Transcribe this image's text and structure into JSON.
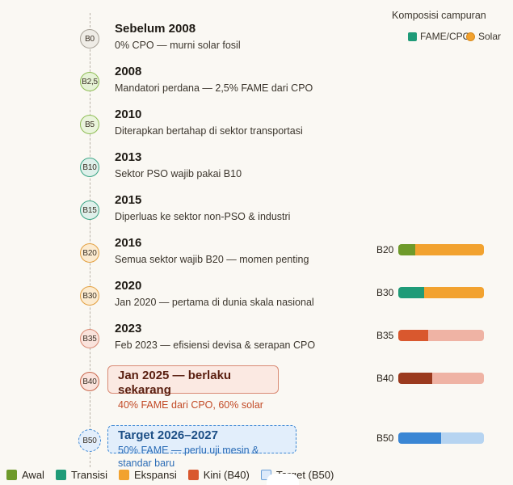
{
  "legend_top": {
    "title": "Komposisi campuran",
    "items": [
      {
        "label": "FAME/CPO",
        "color": "#1f9b78"
      },
      {
        "label": "Solar",
        "color": "#f2a22f"
      }
    ]
  },
  "timeline": [
    {
      "marker": "B0",
      "year": "Sebelum 2008",
      "desc": "0% CPO — murni solar fosil"
    },
    {
      "marker": "B2,5",
      "year": "2008",
      "desc": "Mandatori perdana — 2,5% FAME dari CPO"
    },
    {
      "marker": "B5",
      "year": "2010",
      "desc": "Diterapkan bertahap di sektor transportasi"
    },
    {
      "marker": "B10",
      "year": "2013",
      "desc": "Sektor PSO wajib pakai B10"
    },
    {
      "marker": "B15",
      "year": "2015",
      "desc": "Diperluas ke sektor non-PSO & industri"
    },
    {
      "marker": "B20",
      "year": "2016",
      "desc": "Semua sektor wajib B20 — momen penting"
    },
    {
      "marker": "B30",
      "year": "2020",
      "desc": "Jan 2020 — pertama di dunia skala nasional"
    },
    {
      "marker": "B35",
      "year": "2023",
      "desc": "Feb 2023 — efisiensi devisa & serapan CPO"
    },
    {
      "marker": "B40",
      "year": "Jan 2025 — berlaku sekarang",
      "desc": "40% FAME dari CPO, 60% solar"
    },
    {
      "marker": "B50",
      "year": "Target 2026–2027",
      "desc": "50% FAME — perlu uji mesin & standar baru"
    }
  ],
  "bars": [
    {
      "label": "B20",
      "fame_fraction": 0.2,
      "fame_color": "#6e9a2a",
      "rest_color": "#f2a22f"
    },
    {
      "label": "B30",
      "fame_fraction": 0.3,
      "fame_color": "#1f9b78",
      "rest_color": "#f2a22f"
    },
    {
      "label": "B35",
      "fame_fraction": 0.35,
      "fame_color": "#d9582e",
      "rest_color": "#efb3a4"
    },
    {
      "label": "B40",
      "fame_fraction": 0.4,
      "fame_color": "#9b3a1e",
      "rest_color": "#efb3a4"
    },
    {
      "label": "B50",
      "fame_fraction": 0.5,
      "fame_color": "#3a86d4",
      "rest_color": "#b6d4f1"
    }
  ],
  "legend_bottom": [
    {
      "label": "Awal",
      "color": "#6e9a2a"
    },
    {
      "label": "Transisi",
      "color": "#1f9b78"
    },
    {
      "label": "Ekspansi",
      "color": "#f2a22f"
    },
    {
      "label": "Kini (B40)",
      "color": "#d9582e"
    },
    {
      "label": "Target (B50)",
      "color": "#ddeafa"
    }
  ]
}
